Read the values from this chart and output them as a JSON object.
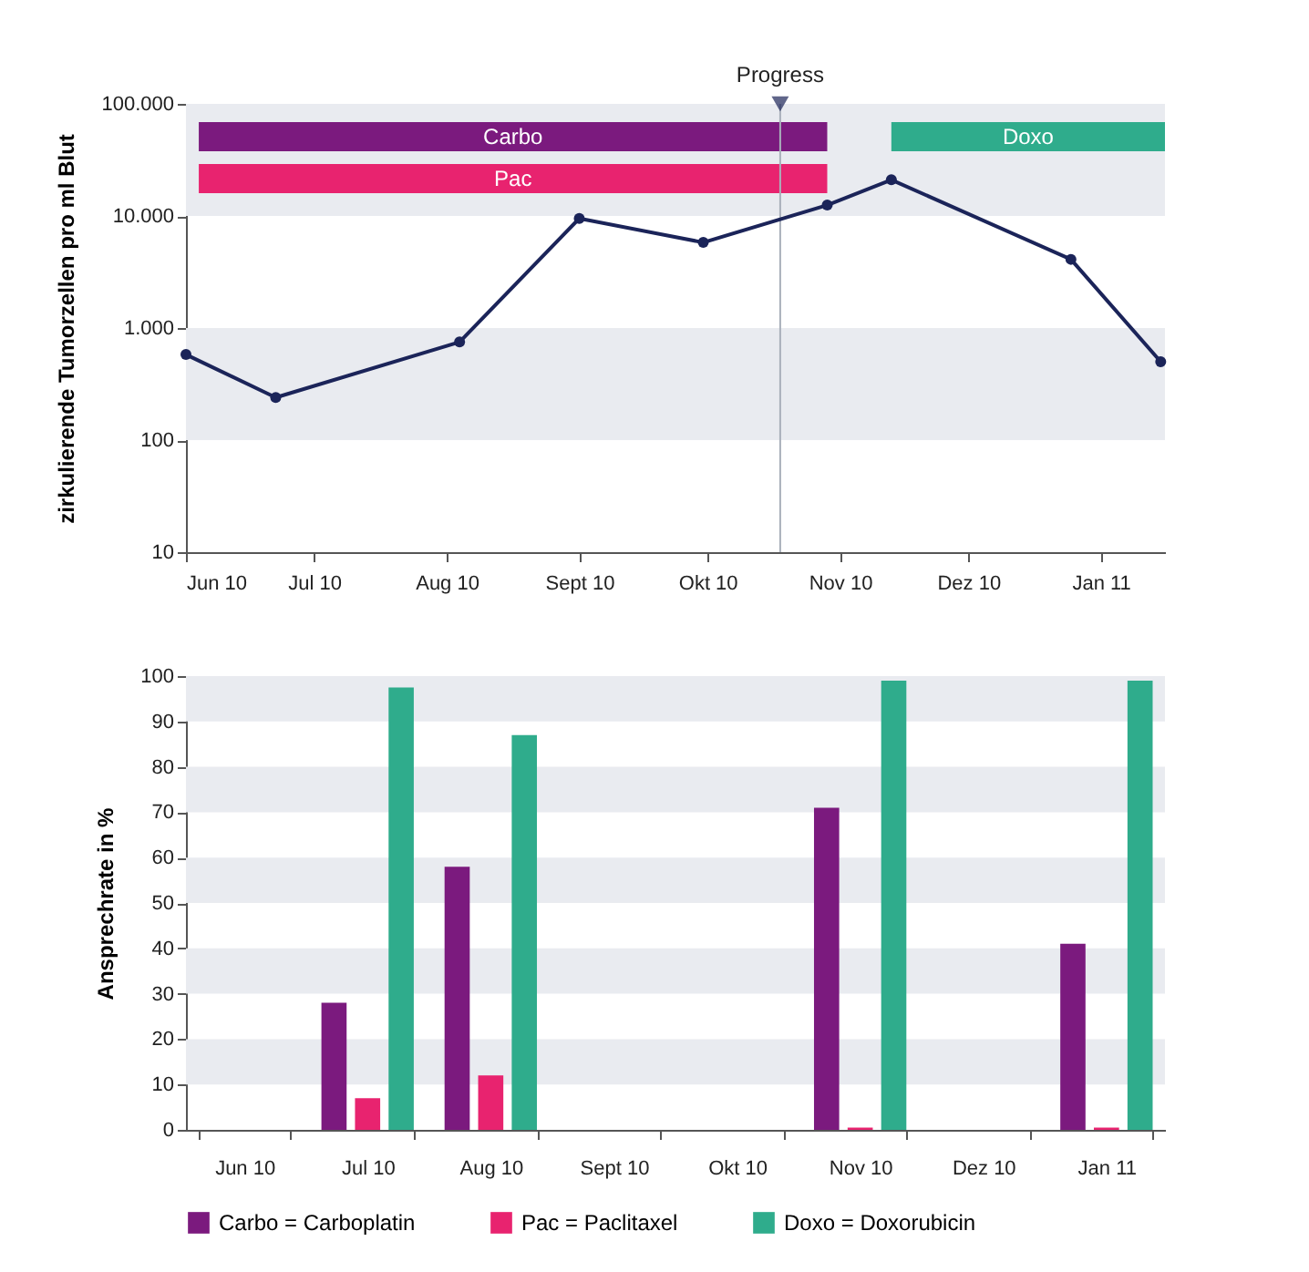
{
  "chart_data": [
    {
      "type": "line",
      "ylabel": "zirkulierende Tumorzellen pro ml Blut",
      "log": true,
      "grid": false,
      "legend": false,
      "marker": "circle",
      "line_style": "solid",
      "x": [
        "2010-06-01",
        "2010-06-22",
        "2010-08-04",
        "2010-09-01",
        "2010-09-30",
        "2010-10-29",
        "2010-11-13",
        "2010-12-25",
        "2011-01-15"
      ],
      "series": [
        {
          "color": "#1b2459",
          "values": [
            580,
            240,
            750,
            9500,
            5800,
            12500,
            21000,
            4100,
            500
          ]
        }
      ],
      "xlim": [
        "2010-06-01",
        "2011-01-16"
      ],
      "xticks": [
        {
          "value": "2010-06-01",
          "label": "Jun 10"
        },
        {
          "value": "2010-07-01",
          "label": "Jul 10"
        },
        {
          "value": "2010-08-01",
          "label": "Aug 10"
        },
        {
          "value": "2010-09-01",
          "label": "Sept 10"
        },
        {
          "value": "2010-10-01",
          "label": "Okt 10"
        },
        {
          "value": "2010-11-01",
          "label": "Nov 10"
        },
        {
          "value": "2010-12-01",
          "label": "Dez 10"
        },
        {
          "value": "2011-01-01",
          "label": "Jan 11"
        }
      ],
      "ylim": [
        10,
        100000
      ],
      "yticks": [
        10,
        100,
        {
          "value": 1000,
          "label": "1.000"
        },
        {
          "value": 10000,
          "label": "10.000"
        },
        {
          "value": 100000,
          "label": "100.000"
        }
      ],
      "ref_lines": [
        {
          "axis": "x",
          "value": "2010-10-18",
          "label": "Progress",
          "color": "#a9b0bb"
        }
      ],
      "bands": [
        {
          "axis": "y",
          "from": 100,
          "to": 1000,
          "color": "#e9ebf0"
        },
        {
          "axis": "y",
          "from": 10000,
          "to": 100000,
          "color": "#e9ebf0"
        },
        {
          "axis": "x",
          "from": "2010-06-04",
          "to": "2010-10-29",
          "label": "Carbo",
          "color": "#7b1a7e"
        },
        {
          "axis": "x",
          "from": "2010-06-04",
          "to": "2010-10-29",
          "label": "Pac",
          "color": "#e8236f"
        },
        {
          "axis": "x",
          "from": "2010-11-13",
          "to": "2011-01-16",
          "label": "Doxo",
          "color": "#2fac8c"
        }
      ]
    },
    {
      "type": "bar",
      "ylabel": "Ansprechrate in %",
      "grid": false,
      "legend": "bottom",
      "categories": [
        "Jun 10",
        "Jul 10",
        "Aug 10",
        "Sept 10",
        "Okt 10",
        "Nov 10",
        "Dez 10",
        "Jan 11"
      ],
      "series": [
        {
          "name": "Carbo = Carboplatin",
          "color": "#7b1a7e",
          "values": [
            null,
            28,
            58,
            null,
            null,
            71,
            null,
            41
          ]
        },
        {
          "name": "Pac = Paclitaxel",
          "color": "#e8236f",
          "values": [
            null,
            7,
            12,
            null,
            null,
            0.5,
            null,
            0.5
          ]
        },
        {
          "name": "Doxo = Doxorubicin",
          "color": "#2fac8c",
          "values": [
            null,
            97.5,
            87,
            null,
            null,
            99,
            null,
            99
          ]
        }
      ],
      "ylim": [
        0,
        100
      ],
      "yticks": [
        0,
        10,
        20,
        30,
        40,
        50,
        60,
        70,
        80,
        90,
        100
      ],
      "bands": [
        {
          "axis": "y",
          "from": 10,
          "to": 20,
          "color": "#e9ebf0"
        },
        {
          "axis": "y",
          "from": 30,
          "to": 40,
          "color": "#e9ebf0"
        },
        {
          "axis": "y",
          "from": 50,
          "to": 60,
          "color": "#e9ebf0"
        },
        {
          "axis": "y",
          "from": 70,
          "to": 80,
          "color": "#e9ebf0"
        },
        {
          "axis": "y",
          "from": 90,
          "to": 100,
          "color": "#e9ebf0"
        }
      ]
    }
  ]
}
